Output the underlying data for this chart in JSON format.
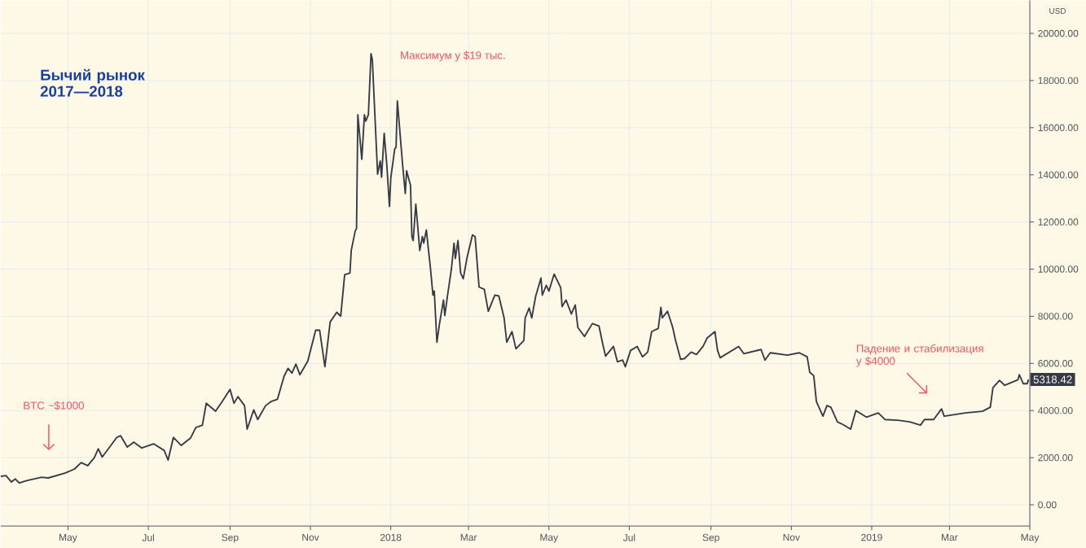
{
  "chart_data": {
    "type": "line",
    "title": "Бычий рынок 2017—2018",
    "ylabel": "USD",
    "x": [
      "2017-03-11",
      "2017-03-15",
      "2017-03-19",
      "2017-03-22",
      "2017-03-25",
      "2017-03-31",
      "2017-04-11",
      "2017-04-16",
      "2017-04-29",
      "2017-05-06",
      "2017-05-11",
      "2017-05-16",
      "2017-05-21",
      "2017-05-24",
      "2017-05-27",
      "2017-06-02",
      "2017-06-07",
      "2017-06-10",
      "2017-06-15",
      "2017-06-20",
      "2017-06-26",
      "2017-07-05",
      "2017-07-13",
      "2017-07-16",
      "2017-07-20",
      "2017-07-26",
      "2017-08-02",
      "2017-08-06",
      "2017-08-11",
      "2017-08-14",
      "2017-08-21",
      "2017-08-26",
      "2017-09-01",
      "2017-09-04",
      "2017-09-07",
      "2017-09-12",
      "2017-09-14",
      "2017-09-19",
      "2017-09-22",
      "2017-09-28",
      "2017-10-02",
      "2017-10-07",
      "2017-10-12",
      "2017-10-15",
      "2017-10-18",
      "2017-10-21",
      "2017-10-24",
      "2017-10-30",
      "2017-11-05",
      "2017-11-08",
      "2017-11-12",
      "2017-11-16",
      "2017-11-21",
      "2017-11-24",
      "2017-11-27",
      "2017-12-01",
      "2017-12-02",
      "2017-12-05",
      "2017-12-06",
      "2017-12-07",
      "2017-12-10",
      "2017-12-12",
      "2017-12-13",
      "2017-12-15",
      "2017-12-17",
      "2017-12-18",
      "2017-12-22",
      "2017-12-24",
      "2017-12-25",
      "2017-12-27",
      "2017-12-29",
      "2017-12-31",
      "2018-01-01",
      "2018-01-04",
      "2018-01-05",
      "2018-01-06",
      "2018-01-10",
      "2018-01-12",
      "2018-01-13",
      "2018-01-16",
      "2018-01-17",
      "2018-01-18",
      "2018-01-20",
      "2018-01-23",
      "2018-01-25",
      "2018-01-26",
      "2018-01-28",
      "2018-01-31",
      "2018-02-02",
      "2018-02-03",
      "2018-02-05",
      "2018-02-07",
      "2018-02-10",
      "2018-02-11",
      "2018-02-13",
      "2018-02-16",
      "2018-02-18",
      "2018-02-19",
      "2018-02-21",
      "2018-02-23",
      "2018-02-25",
      "2018-02-28",
      "2018-03-04",
      "2018-03-06",
      "2018-03-09",
      "2018-03-13",
      "2018-03-16",
      "2018-03-21",
      "2018-03-24",
      "2018-03-28",
      "2018-03-30",
      "2018-04-03",
      "2018-04-06",
      "2018-04-12",
      "2018-04-13",
      "2018-04-16",
      "2018-04-18",
      "2018-04-21",
      "2018-04-25",
      "2018-04-26",
      "2018-04-29",
      "2018-05-01",
      "2018-05-05",
      "2018-05-10",
      "2018-05-11",
      "2018-05-14",
      "2018-05-18",
      "2018-05-21",
      "2018-05-23",
      "2018-05-28",
      "2018-06-03",
      "2018-06-08",
      "2018-06-11",
      "2018-06-13",
      "2018-06-19",
      "2018-06-22",
      "2018-06-26",
      "2018-06-28",
      "2018-07-02",
      "2018-07-07",
      "2018-07-11",
      "2018-07-15",
      "2018-07-18",
      "2018-07-23",
      "2018-07-25",
      "2018-07-26",
      "2018-07-30",
      "2018-08-03",
      "2018-08-05",
      "2018-08-09",
      "2018-08-12",
      "2018-08-17",
      "2018-08-21",
      "2018-08-26",
      "2018-08-29",
      "2018-09-04",
      "2018-09-06",
      "2018-09-08",
      "2018-09-22",
      "2018-09-26",
      "2018-10-09",
      "2018-10-12",
      "2018-10-16",
      "2018-10-29",
      "2018-11-07",
      "2018-11-13",
      "2018-11-15",
      "2018-11-18",
      "2018-11-20",
      "2018-11-25",
      "2018-11-28",
      "2018-12-01",
      "2018-12-06",
      "2018-12-10",
      "2018-12-16",
      "2018-12-20",
      "2018-12-28",
      "2019-01-06",
      "2019-01-11",
      "2019-01-21",
      "2019-01-30",
      "2019-02-07",
      "2019-02-10",
      "2019-02-17",
      "2019-02-23",
      "2019-02-25",
      "2019-03-13",
      "2019-03-26",
      "2019-04-01",
      "2019-04-03",
      "2019-04-08",
      "2019-04-12",
      "2019-04-22",
      "2019-04-23",
      "2019-04-26",
      "2019-04-29",
      "2019-04-30"
    ],
    "values": [
      1210,
      1240,
      970,
      1100,
      930,
      1030,
      1170,
      1140,
      1350,
      1520,
      1790,
      1660,
      2000,
      2380,
      2030,
      2480,
      2860,
      2930,
      2450,
      2660,
      2410,
      2590,
      2310,
      1900,
      2860,
      2520,
      2830,
      3280,
      3380,
      4310,
      3970,
      4380,
      4900,
      4310,
      4590,
      4210,
      3210,
      4030,
      3620,
      4210,
      4380,
      4480,
      5450,
      5790,
      5590,
      5970,
      5520,
      6100,
      7410,
      7410,
      5860,
      7760,
      8170,
      8000,
      9760,
      9830,
      10790,
      11620,
      11720,
      16550,
      14660,
      16550,
      16280,
      16550,
      19140,
      18900,
      14030,
      14590,
      13900,
      15760,
      14410,
      12660,
      13860,
      15100,
      15170,
      17140,
      14410,
      13210,
      14170,
      13550,
      11380,
      11210,
      12760,
      10790,
      11380,
      11100,
      11660,
      10100,
      8900,
      9070,
      6900,
      7690,
      8690,
      8030,
      8860,
      10000,
      11100,
      10450,
      11210,
      9830,
      9590,
      10520,
      11450,
      11380,
      9240,
      9140,
      8210,
      8900,
      8860,
      7930,
      6900,
      7350,
      6620,
      6970,
      7930,
      8350,
      7930,
      8860,
      9620,
      8900,
      9310,
      9070,
      9790,
      9210,
      8410,
      8690,
      8100,
      8480,
      7520,
      7140,
      7690,
      7590,
      6790,
      6310,
      6720,
      6070,
      6140,
      5860,
      6550,
      6720,
      6280,
      6480,
      7350,
      7480,
      8380,
      7930,
      8210,
      7520,
      7000,
      6170,
      6210,
      6480,
      6380,
      6720,
      7070,
      7350,
      6550,
      6240,
      6720,
      6410,
      6590,
      6140,
      6450,
      6350,
      6450,
      6280,
      5620,
      5480,
      4380,
      3760,
      4210,
      4140,
      3520,
      3410,
      3210,
      4000,
      3720,
      3900,
      3620,
      3590,
      3520,
      3380,
      3620,
      3620,
      4070,
      3760,
      3900,
      3970,
      4140,
      4970,
      5280,
      5070,
      5310,
      5520,
      5140,
      5140,
      5318.42
    ],
    "color": "#363a45",
    "line_style": "solid",
    "grid": true,
    "xlim": [
      "2017-03-11",
      "2019-05-01"
    ],
    "xticks": [
      {
        "value": "2017-05-01",
        "label": "May"
      },
      {
        "value": "2017-07-01",
        "label": "Jul"
      },
      {
        "value": "2017-09-01",
        "label": "Sep"
      },
      {
        "value": "2017-11-01",
        "label": "Nov"
      },
      {
        "value": "2018-01-01",
        "label": "2018"
      },
      {
        "value": "2018-03-01",
        "label": "Mar"
      },
      {
        "value": "2018-05-01",
        "label": "May"
      },
      {
        "value": "2018-07-01",
        "label": "Jul"
      },
      {
        "value": "2018-09-01",
        "label": "Sep"
      },
      {
        "value": "2018-11-01",
        "label": "Nov"
      },
      {
        "value": "2019-01-01",
        "label": "2019"
      },
      {
        "value": "2019-03-01",
        "label": "Mar"
      },
      {
        "value": "2019-05-01",
        "label": "May"
      }
    ],
    "ylim": [
      -900,
      21400
    ],
    "yticks": [
      {
        "value": 0,
        "label": "0.00"
      },
      {
        "value": 2000,
        "label": "2000.00"
      },
      {
        "value": 4000,
        "label": "4000.00"
      },
      {
        "value": 6000,
        "label": "6000.00"
      },
      {
        "value": 8000,
        "label": "8000.00"
      },
      {
        "value": 10000,
        "label": "10000.00"
      },
      {
        "value": 12000,
        "label": "12000.00"
      },
      {
        "value": 14000,
        "label": "14000.00"
      },
      {
        "value": 16000,
        "label": "16000.00"
      },
      {
        "value": 18000,
        "label": "18000.00"
      },
      {
        "value": 20000,
        "label": "20000.00"
      }
    ],
    "annotations": [
      "BTC ~$1000",
      {
        "text": "Максимум у $19 тыс.",
        "x": "2017-12-17",
        "y": 19140
      },
      "Падение и стабилизация у $4000",
      {
        "text": "5318.42",
        "x": "2019-04-30",
        "y": 5318.42
      }
    ]
  }
}
